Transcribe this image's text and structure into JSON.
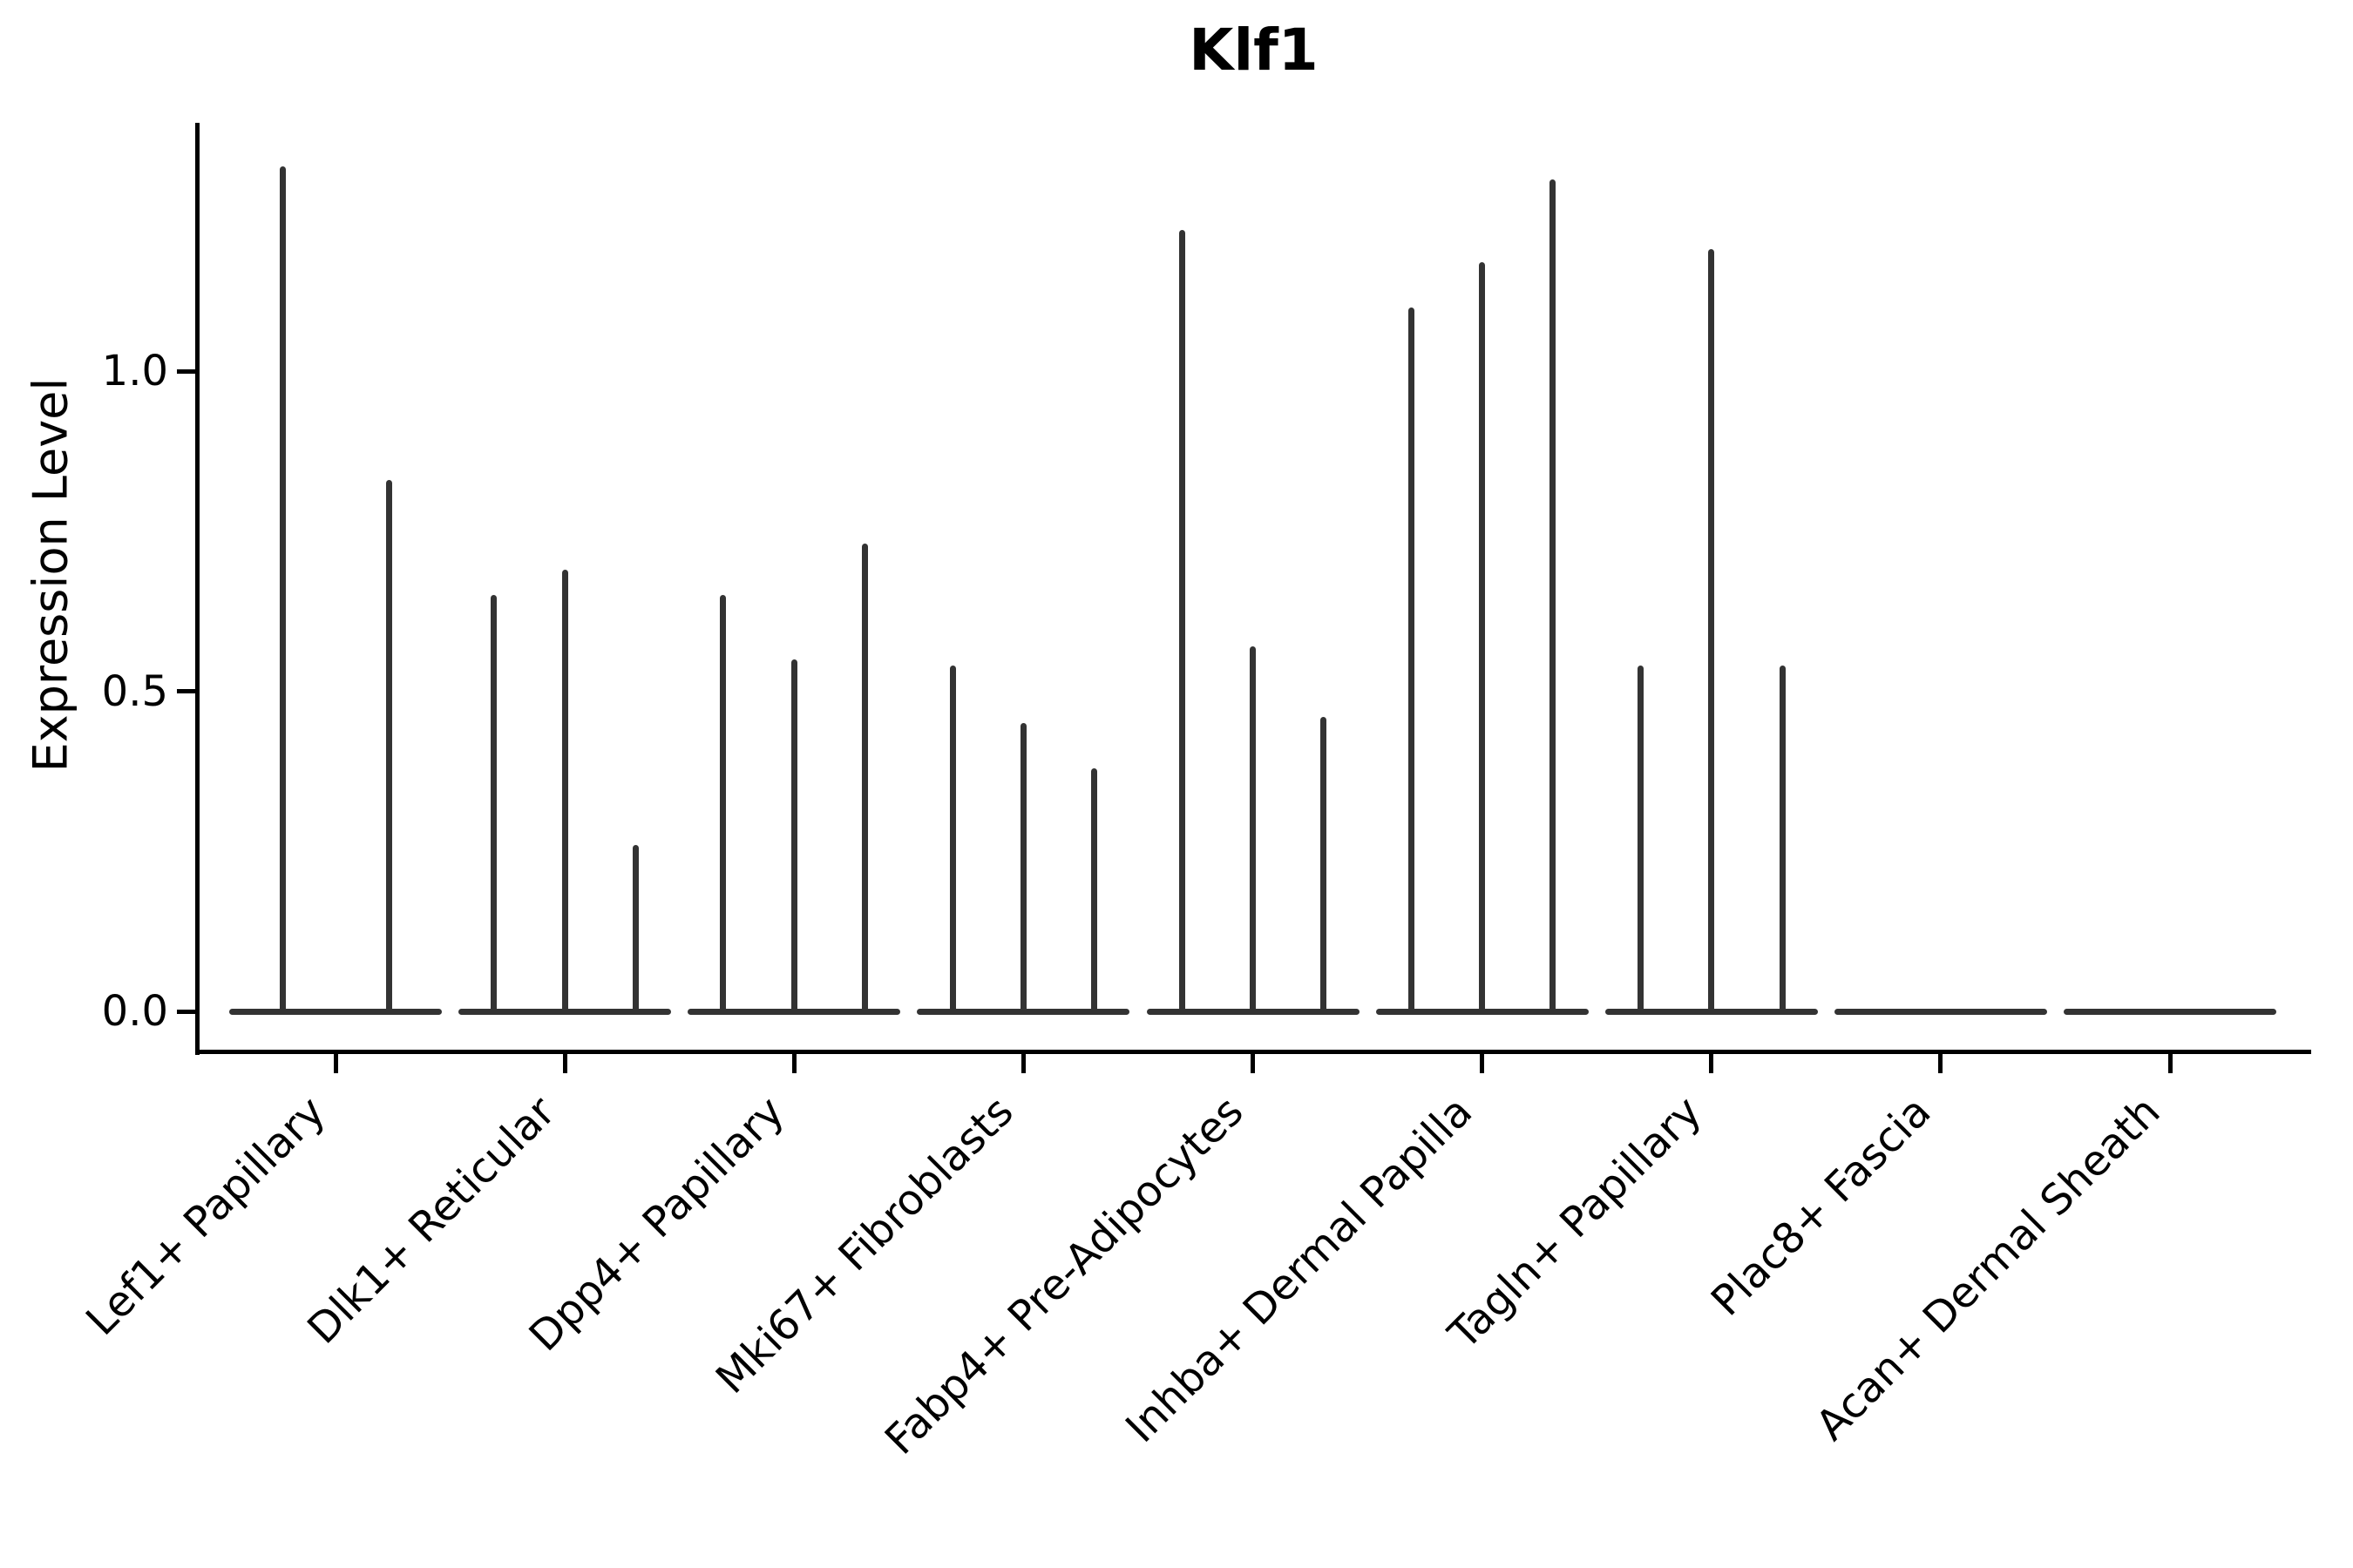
{
  "title": "Klf1",
  "y_axis": {
    "label": "Expression Level",
    "ticks": [
      {
        "label": "0.0",
        "value": 0.0
      },
      {
        "label": "0.5",
        "value": 0.5
      },
      {
        "label": "1.0",
        "value": 1.0
      }
    ]
  },
  "chart_data": {
    "type": "violin",
    "title": "Klf1",
    "xlabel": "",
    "ylabel": "Expression Level",
    "ylim": [
      -0.07,
      1.39
    ],
    "yticks": [
      0.0,
      0.5,
      1.0
    ],
    "grid": false,
    "legend": "none",
    "x_tick_angle": 45,
    "description": "Collapsed violins: cell density concentrated at 0 expression (flat baseline lens per group) with one thin spike per violin reaching the maximum expression value.",
    "categories": [
      "Lef1+ Papillary",
      "Dlk1+ Reticular",
      "Dpp4+ Papillary",
      "Mki67+ Fibroblasts",
      "Fabp4+ Pre-Adipocytes",
      "Inhba+ Dermal Papilla",
      "Tagln+ Papillary",
      "Plac8+ Fascia",
      "Acan+ Dermal Sheath"
    ],
    "groups": [
      {
        "category": "Lef1+ Papillary",
        "violin_peaks": [
          1.32,
          0.83
        ]
      },
      {
        "category": "Dlk1+ Reticular",
        "violin_peaks": [
          0.65,
          0.69,
          0.26
        ]
      },
      {
        "category": "Dpp4+ Papillary",
        "violin_peaks": [
          0.65,
          0.55,
          0.73
        ]
      },
      {
        "category": "Mki67+ Fibroblasts",
        "violin_peaks": [
          0.54,
          0.45,
          0.38
        ]
      },
      {
        "category": "Fabp4+ Pre-Adipocytes",
        "violin_peaks": [
          1.22,
          0.57,
          0.46
        ]
      },
      {
        "category": "Inhba+ Dermal Papilla",
        "violin_peaks": [
          1.1,
          1.17,
          1.3
        ]
      },
      {
        "category": "Tagln+ Papillary",
        "violin_peaks": [
          0.54,
          1.19,
          0.54
        ]
      },
      {
        "category": "Plac8+ Fascia",
        "violin_peaks": [
          0,
          0,
          0
        ]
      },
      {
        "category": "Acan+ Dermal Sheath",
        "violin_peaks": [
          0,
          0,
          0
        ]
      }
    ],
    "colors": {
      "violin": "#333333",
      "axis": "#000000",
      "text": "#000000",
      "background": "#ffffff"
    }
  }
}
